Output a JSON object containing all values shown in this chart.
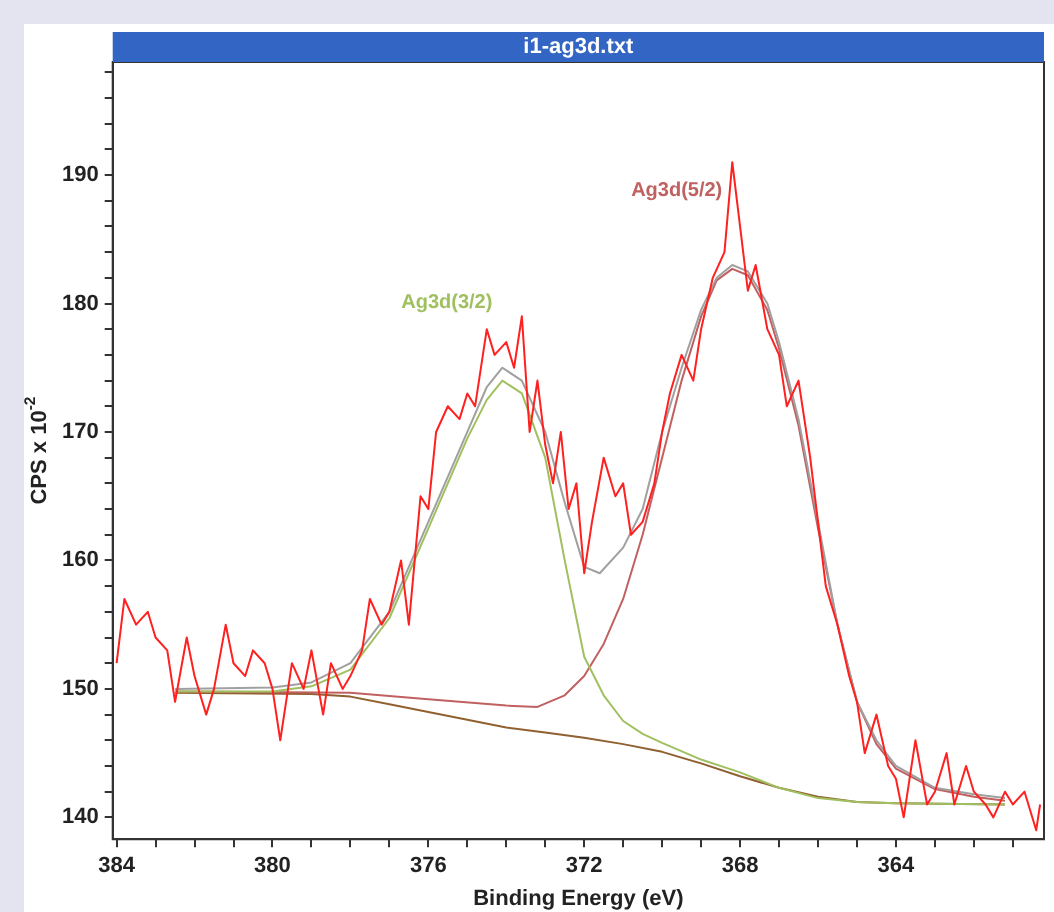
{
  "chart_data": {
    "type": "line",
    "title": "i1-ag3d.txt",
    "xlabel": "Binding Energy (eV)",
    "ylabel": "CPS x 10$^{-2}$",
    "xlim": [
      384.1,
      360.2
    ],
    "ylim": [
      138.3,
      198.8
    ],
    "xticks": [
      384,
      {
        "value": 383,
        "label": null
      },
      {
        "value": 382,
        "label": null
      },
      {
        "value": 381,
        "label": null
      },
      380,
      {
        "value": 379,
        "label": null
      },
      {
        "value": 378,
        "label": null
      },
      {
        "value": 377,
        "label": null
      },
      376,
      {
        "value": 375,
        "label": null
      },
      {
        "value": 374,
        "label": null
      },
      {
        "value": 373,
        "label": null
      },
      372,
      {
        "value": 371,
        "label": null
      },
      {
        "value": 370,
        "label": null
      },
      {
        "value": 369,
        "label": null
      },
      368,
      {
        "value": 367,
        "label": null
      },
      {
        "value": 366,
        "label": null
      },
      {
        "value": 365,
        "label": null
      },
      364,
      {
        "value": 363,
        "label": null
      },
      {
        "value": 362,
        "label": null
      },
      {
        "value": 361,
        "label": null
      }
    ],
    "yticks": [
      140,
      {
        "value": 142,
        "label": null
      },
      {
        "value": 144,
        "label": null
      },
      {
        "value": 146,
        "label": null
      },
      {
        "value": 148,
        "label": null
      },
      150,
      {
        "value": 152,
        "label": null
      },
      {
        "value": 154,
        "label": null
      },
      {
        "value": 156,
        "label": null
      },
      {
        "value": 158,
        "label": null
      },
      160,
      {
        "value": 162,
        "label": null
      },
      {
        "value": 164,
        "label": null
      },
      {
        "value": 166,
        "label": null
      },
      {
        "value": 168,
        "label": null
      },
      170,
      {
        "value": 172,
        "label": null
      },
      {
        "value": 174,
        "label": null
      },
      {
        "value": 176,
        "label": null
      },
      {
        "value": 178,
        "label": null
      },
      180,
      {
        "value": 182,
        "label": null
      },
      {
        "value": 184,
        "label": null
      },
      {
        "value": 186,
        "label": null
      },
      {
        "value": 188,
        "label": null
      },
      190,
      {
        "value": 192,
        "label": null
      },
      {
        "value": 194,
        "label": null
      },
      {
        "value": 196,
        "label": null
      },
      {
        "value": 198,
        "label": null
      }
    ],
    "grid": false,
    "legend": false,
    "marker": "none",
    "line_style": "solid",
    "series": [
      {
        "color": "#ff2020",
        "x": [
          384,
          383.8,
          383.5,
          383.2,
          383,
          382.7,
          382.5,
          382.2,
          382,
          381.7,
          381.5,
          381.2,
          381,
          380.7,
          380.5,
          380.2,
          380,
          379.8,
          379.5,
          379.2,
          379,
          378.7,
          378.5,
          378.2,
          378,
          377.7,
          377.5,
          377.2,
          377,
          376.7,
          376.5,
          376.2,
          376,
          375.8,
          375.5,
          375.2,
          375,
          374.8,
          374.5,
          374.3,
          374,
          373.8,
          373.6,
          373.4,
          373.2,
          373,
          372.8,
          372.6,
          372.4,
          372.2,
          372,
          371.8,
          371.5,
          371.2,
          371,
          370.8,
          370.5,
          370.2,
          370,
          369.8,
          369.5,
          369.2,
          369,
          368.7,
          368.4,
          368.2,
          368,
          367.8,
          367.6,
          367.3,
          367,
          366.8,
          366.5,
          366.2,
          366,
          365.8,
          365.5,
          365.2,
          365,
          364.8,
          364.5,
          364.2,
          364,
          363.8,
          363.5,
          363.2,
          363,
          362.7,
          362.5,
          362.2,
          362,
          361.7,
          361.5,
          361.2,
          361,
          360.7,
          360.4,
          360.3
        ],
        "values": [
          152,
          157,
          155,
          156,
          154,
          153,
          149,
          154,
          151,
          148,
          150,
          155,
          152,
          151,
          153,
          152,
          150,
          146,
          152,
          150,
          153,
          148,
          152,
          150,
          151,
          153,
          157,
          155,
          156,
          160,
          155,
          165,
          164,
          170,
          172,
          171,
          173,
          172,
          178,
          176,
          177,
          175,
          179,
          170,
          174,
          169,
          166,
          170,
          164,
          166,
          159,
          163,
          168,
          165,
          166,
          162,
          163,
          166,
          170,
          173,
          176,
          174,
          178,
          182,
          184,
          191,
          186,
          181,
          183,
          178,
          176,
          172,
          174,
          168,
          163,
          158,
          155,
          151,
          149,
          145,
          148,
          144,
          143,
          140,
          146,
          141,
          142,
          145,
          141,
          144,
          142,
          141,
          140,
          142,
          141,
          142,
          139,
          141
        ]
      },
      {
        "color": "#a0a0a0",
        "x": [
          382.5,
          380,
          379,
          378,
          377,
          376,
          375,
          374.5,
          374.1,
          373.6,
          373,
          372.5,
          372,
          371.6,
          371,
          370.5,
          370,
          369.5,
          369,
          368.6,
          368.2,
          367.8,
          367.3,
          367,
          366.5,
          366,
          365.5,
          365,
          364.5,
          364,
          363,
          362,
          361.2
        ],
        "values": [
          150,
          150.1,
          150.5,
          152,
          156,
          163,
          170,
          173.5,
          175,
          174,
          170,
          164.5,
          159.5,
          159,
          161,
          164,
          170,
          175,
          179.5,
          182,
          183,
          182.5,
          180,
          177,
          171,
          163,
          155,
          149,
          146,
          144,
          142.3,
          141.8,
          141.5
        ]
      },
      {
        "name": "Ag3d(3/2)",
        "color": "#a0c060",
        "x": [
          382.5,
          380,
          379,
          378,
          377,
          376,
          375,
          374.5,
          374.1,
          373.6,
          373,
          372.5,
          372,
          371.5,
          371,
          370.5,
          370,
          369,
          368,
          367,
          366,
          365,
          364,
          361.2
        ],
        "values": [
          149.8,
          149.8,
          150.2,
          151.5,
          155.5,
          162.5,
          169.5,
          172.5,
          174,
          173,
          168,
          160,
          152.5,
          149.5,
          147.5,
          146.5,
          145.8,
          144.5,
          143.5,
          142.3,
          141.5,
          141.2,
          141.1,
          141
        ]
      },
      {
        "name": "Ag3d(5/2)",
        "color": "#c06060",
        "x": [
          382.5,
          378,
          376,
          374,
          373.2,
          372.5,
          372,
          371.5,
          371,
          370.5,
          370,
          369.5,
          369,
          368.6,
          368.2,
          367.8,
          367.3,
          367,
          366.5,
          366,
          365.5,
          365,
          364.5,
          364,
          363,
          362,
          361.2
        ],
        "values": [
          149.8,
          149.7,
          149.2,
          148.7,
          148.6,
          149.5,
          151,
          153.5,
          157,
          162,
          168,
          174,
          179,
          181.8,
          182.7,
          182.2,
          179.5,
          176.5,
          170.5,
          162.5,
          155,
          149,
          145.7,
          143.8,
          142.2,
          141.6,
          141.3
        ]
      },
      {
        "color": "#906030",
        "x": [
          382.5,
          379,
          378,
          377,
          376,
          375,
          374,
          373,
          372,
          371,
          370,
          369,
          368,
          367,
          366,
          365,
          364,
          361.2
        ],
        "values": [
          149.7,
          149.6,
          149.4,
          148.8,
          148.2,
          147.6,
          147,
          146.6,
          146.2,
          145.7,
          145.1,
          144.2,
          143.2,
          142.3,
          141.6,
          141.2,
          141.1,
          141
        ]
      }
    ]
  }
}
